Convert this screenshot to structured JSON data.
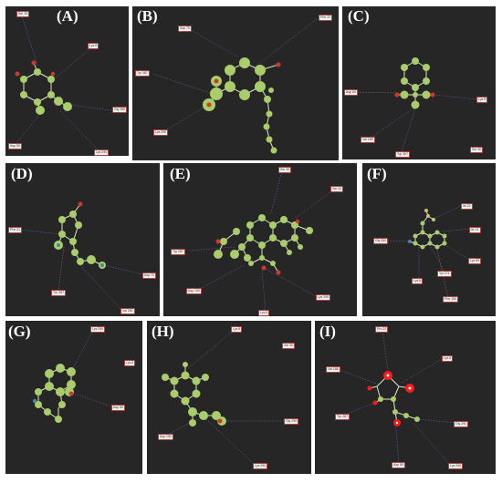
{
  "panels": [
    {
      "id": "A",
      "label": "(A)",
      "residues": [
        "Ser 39",
        "Lys 8",
        "Gly 280",
        "Lys 290",
        "Asp 55"
      ]
    },
    {
      "id": "B",
      "label": "(B)",
      "residues": [
        "Asp 70",
        "Phe 22",
        "Tyr 287",
        "Lys 290"
      ]
    },
    {
      "id": "C",
      "label": "(C)",
      "residues": [
        "Asp 60",
        "Lys 8",
        "Val 188",
        "Trp 307",
        "Ser 30"
      ]
    },
    {
      "id": "D",
      "label": "(D)",
      "residues": [
        "Phe 21",
        "Asp 70",
        "Thr 287",
        "Val 280"
      ]
    },
    {
      "id": "E",
      "label": "(E)",
      "residues": [
        "Ser 30",
        "Val 44",
        "Trp 287",
        "Asp 150",
        "Lys 290",
        "Lys 8"
      ]
    },
    {
      "id": "F",
      "label": "(F)",
      "residues": [
        "Ile 22",
        "Gly 250",
        "Ile 21",
        "Lys 8",
        "Lys 55",
        "Tyr 271",
        "Phe 150"
      ]
    },
    {
      "id": "G",
      "label": "(G)",
      "residues": [
        "Lys 290",
        "Lys 8",
        "Asp 55"
      ]
    },
    {
      "id": "H",
      "label": "(H)",
      "residues": [
        "Lys 8",
        "Ser 30",
        "Gly 290",
        "Asp 150",
        "Lys 290"
      ]
    },
    {
      "id": "I",
      "label": "(I)",
      "residues": [
        "Pro 22",
        "Val 188",
        "Lys 8",
        "Trp 287",
        "Gly 290",
        "Asp 55",
        "Lys 290"
      ]
    }
  ],
  "colors": {
    "panel_bg": "#262626",
    "ligand": "#a9cd6a",
    "ligand_dark": "#6f9a3a",
    "oxygen": "#cc3b2a",
    "hydrogen_bond": "#6c6cc0",
    "hydrophobic": "#c06c6c",
    "highlight": "#ff1a1a"
  }
}
